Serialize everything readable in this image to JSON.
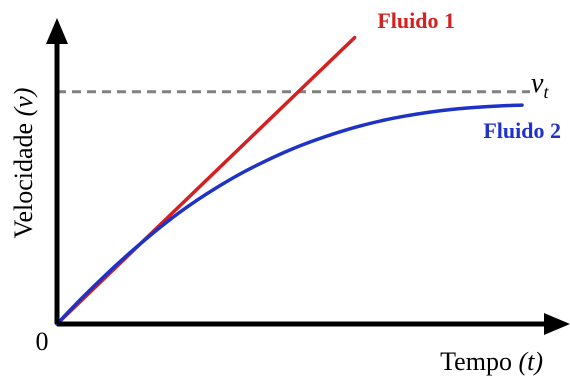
{
  "chart_data": {
    "type": "line",
    "xlabel": "Tempo",
    "xlabel_var": "(t)",
    "ylabel": "Velocidade",
    "ylabel_var": "(v)",
    "origin_label": "0",
    "xlim": [
      0,
      10
    ],
    "ylim": [
      0,
      10
    ],
    "reference_line": {
      "label": "v",
      "subscript": "t",
      "y": 8.15,
      "style": "dashed",
      "color": "#808080"
    },
    "series": [
      {
        "name": "Fluido 1",
        "color": "#d42020",
        "x": [
          0,
          6.4
        ],
        "y": [
          0,
          10.05
        ]
      },
      {
        "name": "Fluido 2",
        "color": "#1e32c8",
        "x": [
          0,
          0.5,
          1.0,
          1.5,
          2.0,
          2.5,
          3.0,
          3.5,
          4.0,
          4.5,
          5.0,
          5.5,
          6.0,
          6.5,
          7.0,
          7.5,
          8.0,
          8.5,
          9.0,
          9.5,
          10.0
        ],
        "y": [
          0,
          0.85,
          1.65,
          2.4,
          3.1,
          3.75,
          4.33,
          4.85,
          5.32,
          5.73,
          6.1,
          6.42,
          6.7,
          6.94,
          7.14,
          7.3,
          7.43,
          7.53,
          7.6,
          7.65,
          7.68
        ]
      }
    ],
    "grid": false,
    "legend": "inline-labels"
  }
}
